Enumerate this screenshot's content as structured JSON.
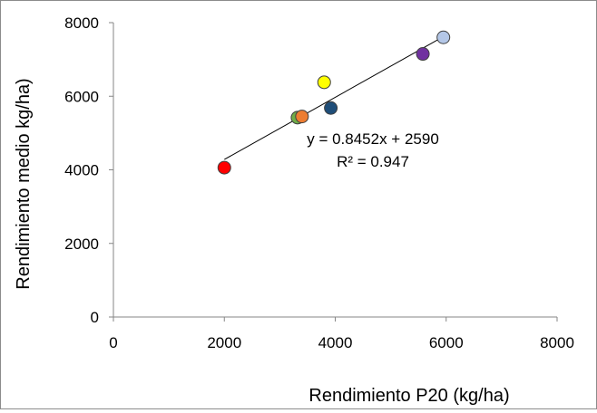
{
  "chart_data": {
    "type": "scatter",
    "xlabel": "Rendimiento P20 (kg/ha)",
    "ylabel": "Rendimiento medio kg/ha)",
    "xlim": [
      0,
      8000
    ],
    "ylim": [
      0,
      8000
    ],
    "xticks": [
      "0",
      "2000",
      "4000",
      "6000",
      "8000"
    ],
    "yticks": [
      "0",
      "2000",
      "4000",
      "6000",
      "8000"
    ],
    "grid": false,
    "points": [
      {
        "x": 2000,
        "y": 4060,
        "color": "#ff0000"
      },
      {
        "x": 3320,
        "y": 5420,
        "color": "#70ad47"
      },
      {
        "x": 3400,
        "y": 5450,
        "color": "#ed7d31"
      },
      {
        "x": 3800,
        "y": 6380,
        "color": "#ffff00"
      },
      {
        "x": 3920,
        "y": 5680,
        "color": "#1f4e79"
      },
      {
        "x": 5580,
        "y": 7150,
        "color": "#7030a0"
      },
      {
        "x": 5950,
        "y": 7600,
        "color": "#b4c7e7"
      }
    ],
    "trendline": {
      "slope": 0.8452,
      "intercept": 2590,
      "x_range": [
        2000,
        5950
      ]
    },
    "annotations": {
      "equation": "y = 0.8452x + 2590",
      "r_squared": "R² = 0.947"
    }
  }
}
